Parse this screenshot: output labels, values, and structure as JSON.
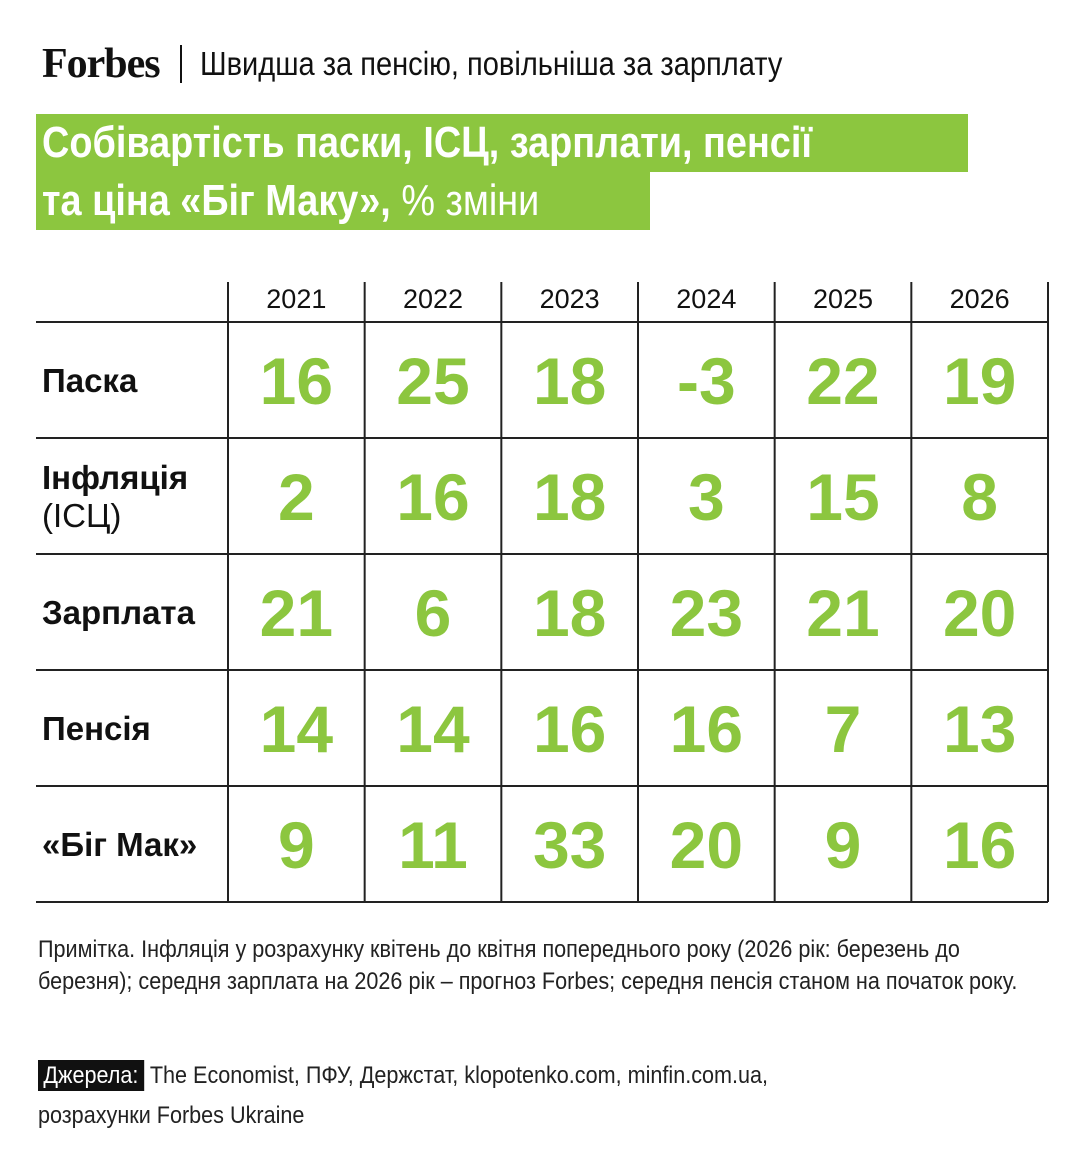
{
  "header": {
    "logo": "Forbes",
    "subtitle": "Швидша за пенсію, повільніша за зарплату"
  },
  "title": {
    "line1": "Собівартість паски, ІСЦ, зарплати, пенсії",
    "line2_main": "та ціна «Біг Маку», ",
    "line2_suffix": "% зміни"
  },
  "colors": {
    "accent": "#8cc63f",
    "text": "#111111",
    "background": "#ffffff"
  },
  "chart_data": {
    "type": "table",
    "categories": [
      "2021",
      "2022",
      "2023",
      "2024",
      "2025",
      "2026"
    ],
    "series": [
      {
        "name": "Паска",
        "label_lines": [
          "Паска"
        ],
        "values": [
          16,
          25,
          18,
          -3,
          22,
          19
        ]
      },
      {
        "name": "Інфляція (ІСЦ)",
        "label_lines": [
          "Інфляція",
          "(ІСЦ)"
        ],
        "values": [
          2,
          16,
          18,
          3,
          15,
          8
        ]
      },
      {
        "name": "Зарплата",
        "label_lines": [
          "Зарплата"
        ],
        "values": [
          21,
          6,
          18,
          23,
          21,
          20
        ]
      },
      {
        "name": "Пенсія",
        "label_lines": [
          "Пенсія"
        ],
        "values": [
          14,
          14,
          16,
          16,
          7,
          13
        ]
      },
      {
        "name": "«Біг Мак»",
        "label_lines": [
          "«Біг Мак»"
        ],
        "values": [
          9,
          11,
          33,
          20,
          9,
          16
        ]
      }
    ]
  },
  "note": "Примітка. Інфляція у розрахунку квітень до квітня попереднього року (2026 рік: березень до березня); середня зарплата на 2026 рік – прогноз Forbes; середня пенсія станом на початок року.",
  "sources": {
    "label": "Джерела:",
    "line1": " The Economist, ПФУ, Держстат, klopotenko.com, minfin.com.ua,",
    "line2": "розрахунки Forbes Ukraine"
  }
}
